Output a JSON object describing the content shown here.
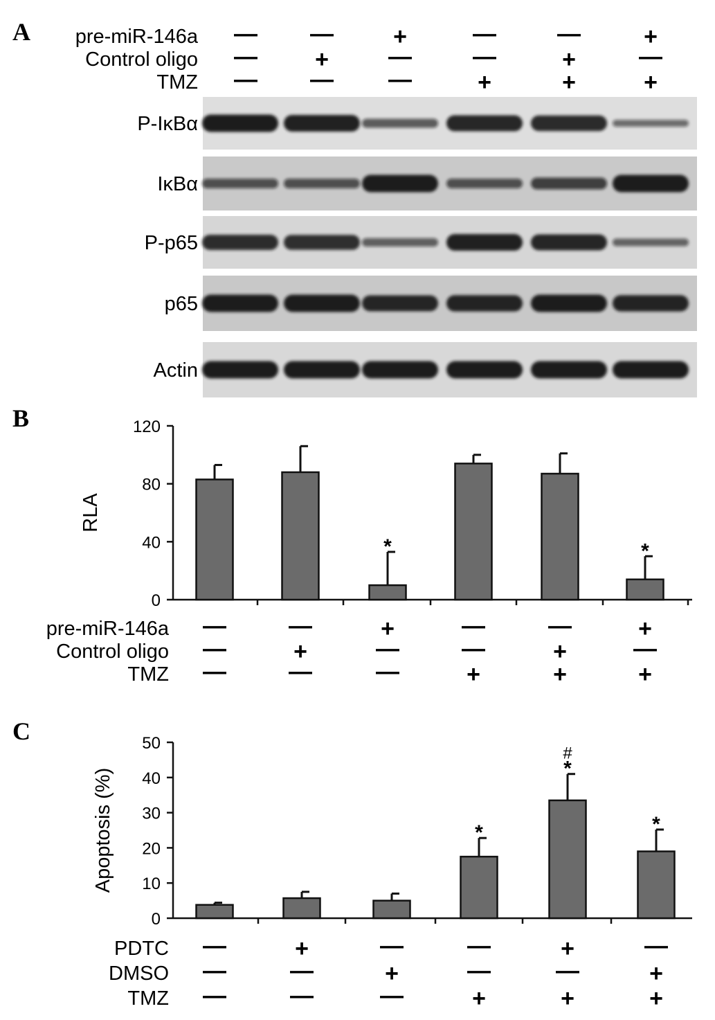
{
  "panel_labels": [
    "A",
    "B",
    "C"
  ],
  "blot": {
    "conditions": [
      {
        "label": "pre-miR-146a",
        "signs": [
          "—",
          "—",
          "+",
          "—",
          "—",
          "+"
        ]
      },
      {
        "label": "Control oligo",
        "signs": [
          "—",
          "+",
          "—",
          "—",
          "+",
          "—"
        ]
      },
      {
        "label": "TMZ",
        "signs": [
          "—",
          "—",
          "—",
          "+",
          "+",
          "+"
        ]
      }
    ],
    "rows": [
      {
        "label": "P-IκBα",
        "bg": "#dedede",
        "intensity": [
          0.95,
          0.9,
          0.35,
          0.85,
          0.82,
          0.2
        ]
      },
      {
        "label": "IκBα",
        "bg": "#c9c9c9",
        "intensity": [
          0.4,
          0.4,
          0.95,
          0.4,
          0.55,
          0.95
        ]
      },
      {
        "label": "P-p65",
        "bg": "#d6d6d6",
        "intensity": [
          0.8,
          0.78,
          0.3,
          0.9,
          0.85,
          0.25
        ]
      },
      {
        "label": "p65",
        "bg": "#c8c8c8",
        "intensity": [
          0.95,
          0.95,
          0.85,
          0.88,
          0.95,
          0.88
        ]
      },
      {
        "label": "Actin",
        "bg": "#d8d8d8",
        "intensity": [
          0.95,
          0.95,
          0.95,
          0.95,
          0.95,
          0.95
        ]
      }
    ]
  },
  "chart_data": [
    {
      "type": "bar",
      "ylabel": "RLA",
      "ylim": [
        0,
        120
      ],
      "yticks": [
        "0",
        "40",
        "80",
        "120"
      ],
      "values": [
        83,
        88,
        10,
        94,
        87,
        14
      ],
      "errors": [
        10,
        18,
        23,
        6,
        14,
        16
      ],
      "annotations": [
        "",
        "",
        "*",
        "",
        "",
        "*"
      ],
      "conditions": [
        {
          "label": "pre-miR-146a",
          "signs": [
            "—",
            "—",
            "+",
            "—",
            "—",
            "+"
          ]
        },
        {
          "label": "Control oligo",
          "signs": [
            "—",
            "+",
            "—",
            "—",
            "+",
            "—"
          ]
        },
        {
          "label": "TMZ",
          "signs": [
            "—",
            "—",
            "—",
            "+",
            "+",
            "+"
          ]
        }
      ]
    },
    {
      "type": "bar",
      "ylabel": "Apoptosis (%)",
      "ylim": [
        0,
        50
      ],
      "yticks": [
        "0",
        "10",
        "20",
        "30",
        "40",
        "50"
      ],
      "values": [
        3.8,
        5.7,
        5.0,
        17.5,
        33.5,
        19.0
      ],
      "errors": [
        0.6,
        1.8,
        2.0,
        5.3,
        7.5,
        6.2
      ],
      "annotations": [
        "",
        "",
        "",
        "*",
        "#\n*",
        "*"
      ],
      "conditions": [
        {
          "label": "PDTC",
          "signs": [
            "—",
            "+",
            "—",
            "—",
            "+",
            "—"
          ]
        },
        {
          "label": "DMSO",
          "signs": [
            "—",
            "—",
            "+",
            "—",
            "—",
            "+"
          ]
        },
        {
          "label": "TMZ",
          "signs": [
            "—",
            "—",
            "—",
            "+",
            "+",
            "+"
          ]
        }
      ]
    }
  ],
  "colors": {
    "bar_fill": "#6b6b6b",
    "axis": "#111111",
    "band": "#151515"
  }
}
